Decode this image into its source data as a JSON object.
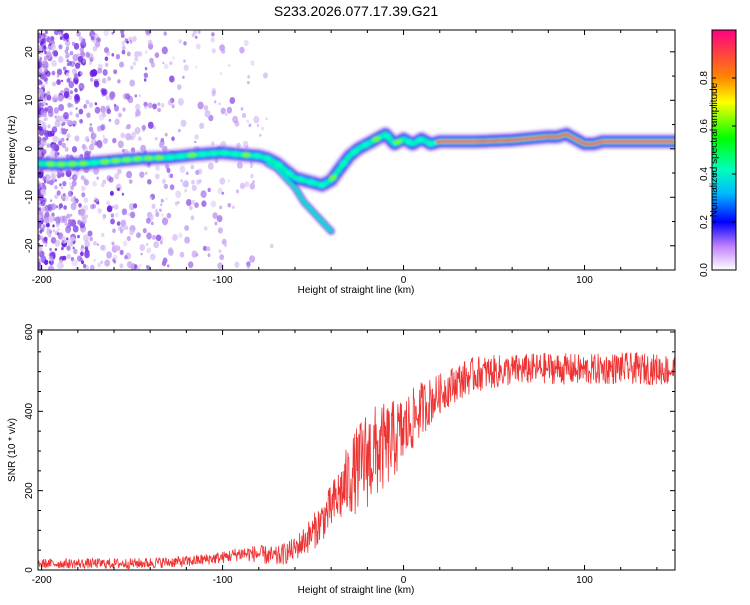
{
  "title": "S233.2026.077.17.39.G21",
  "chart_data": [
    {
      "type": "heatmap",
      "name": "spectrogram",
      "xlabel": "Height of straight line (km)",
      "ylabel": "Frequency (Hz)",
      "xlim": [
        -202,
        150
      ],
      "ylim": [
        -25,
        24.5
      ],
      "xticks": [
        -200,
        -100,
        0,
        100
      ],
      "xtick_labels": [
        "-200",
        "-100",
        "0",
        "100"
      ],
      "yticks": [
        -20,
        -10,
        0,
        10,
        20
      ],
      "ytick_labels": [
        "-20",
        "-10",
        "0",
        "10",
        "20"
      ],
      "ridge": {
        "x": [
          -205,
          -190,
          -175,
          -160,
          -145,
          -130,
          -115,
          -100,
          -90,
          -80,
          -75,
          -70,
          -65,
          -60,
          -55,
          -50,
          -45,
          -40,
          -35,
          -30,
          -25,
          -20,
          -15,
          -10,
          -5,
          0,
          5,
          10,
          15,
          20,
          40,
          60,
          80,
          85,
          90,
          95,
          100,
          105,
          110,
          150
        ],
        "y": [
          -3,
          -3.2,
          -3,
          -2.5,
          -2,
          -1.8,
          -1.2,
          -0.8,
          -1.2,
          -1.5,
          -2,
          -3,
          -4.5,
          -6,
          -6.5,
          -7,
          -7.5,
          -6.5,
          -4,
          -1.5,
          0,
          1,
          2,
          3,
          1,
          2,
          1,
          2,
          1,
          1.5,
          1.5,
          1.8,
          2.5,
          2.5,
          3,
          2,
          1,
          1,
          1.5,
          1.5
        ]
      },
      "branch": {
        "x": [
          -75,
          -70,
          -65,
          -60,
          -55,
          -50,
          -45,
          -40
        ],
        "y": [
          -3,
          -4,
          -6,
          -8,
          -11,
          -13,
          -15,
          -17
        ]
      },
      "colorbar": {
        "label": "Normalized spectral amplitude",
        "range": [
          0,
          1
        ],
        "ticks": [
          0.0,
          0.2,
          0.4,
          0.6,
          0.8
        ],
        "tick_labels": [
          "0.0",
          "0.2",
          "0.4",
          "0.6",
          "0.8"
        ]
      }
    },
    {
      "type": "line",
      "name": "snr",
      "xlabel": "Height of straight line (km)",
      "ylabel": "SNR (10 * v/v)",
      "xlim": [
        -202,
        150
      ],
      "ylim": [
        0,
        605
      ],
      "xticks": [
        -200,
        -100,
        0,
        100
      ],
      "xtick_labels": [
        "-200",
        "-100",
        "0",
        "100"
      ],
      "yticks": [
        0,
        200,
        400,
        600
      ],
      "ytick_labels": [
        "0",
        "200",
        "400",
        "600"
      ],
      "color": "#ee3333",
      "trend": {
        "x": [
          -202,
          -150,
          -120,
          -100,
          -90,
          -80,
          -70,
          -60,
          -50,
          -40,
          -30,
          -20,
          -10,
          0,
          10,
          20,
          30,
          40,
          60,
          80,
          100,
          120,
          150
        ],
        "y": [
          15,
          15,
          20,
          30,
          40,
          38,
          30,
          50,
          90,
          150,
          220,
          270,
          300,
          340,
          400,
          440,
          470,
          490,
          500,
          505,
          500,
          505,
          500
        ]
      },
      "noise": {
        "x": [
          -202,
          -100,
          -60,
          -40,
          -20,
          0,
          20,
          60,
          150
        ],
        "amplitude": [
          12,
          15,
          30,
          60,
          130,
          90,
          50,
          40,
          40
        ]
      },
      "sample_count": 1400
    }
  ]
}
